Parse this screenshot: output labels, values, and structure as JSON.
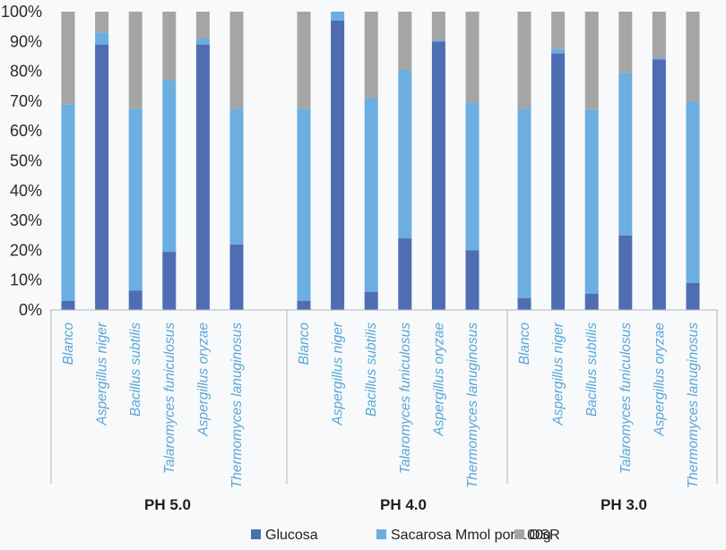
{
  "chart_data": {
    "type": "bar",
    "stacked": true,
    "percent": true,
    "ylim": [
      0,
      100
    ],
    "yticks": [
      "0%",
      "10%",
      "20%",
      "30%",
      "40%",
      "50%",
      "60%",
      "70%",
      "80%",
      "90%",
      "100%"
    ],
    "grid": false,
    "legend_position": "bottom",
    "groups": [
      {
        "label": "PH 5.0",
        "categories": [
          "Blanco",
          "Aspergillus niger",
          "Bacillus subtilis",
          "Talaromyces funiculosus",
          "Aspergillus oryzae",
          "Thermomyces lanuginosus"
        ],
        "series": [
          {
            "name": "Glucosa",
            "values": [
              3,
              89,
              6.5,
              19.5,
              89,
              22
            ]
          },
          {
            "name": "Sacarosa Mmol por 100g",
            "values": [
              66,
              4,
              61,
              57.5,
              2,
              45.5
            ]
          },
          {
            "name": "OSR",
            "values": [
              31,
              7,
              32.5,
              23,
              9,
              32.5
            ]
          }
        ]
      },
      {
        "label": "PH 4.0",
        "categories": [
          "Blanco",
          "Aspergillus niger",
          "Bacillus subtilis",
          "Talaromyces funiculosus",
          "Aspergillus oryzae",
          "Thermomyces lanuginosus"
        ],
        "series": [
          {
            "name": "Glucosa",
            "values": [
              3,
              97,
              6,
              24,
              90,
              20
            ]
          },
          {
            "name": "Sacarosa Mmol por 100g",
            "values": [
              64.5,
              3,
              65,
              56.5,
              0.5,
              49.5
            ]
          },
          {
            "name": "OSR",
            "values": [
              32.5,
              0,
              29,
              19.5,
              9.5,
              30.5
            ]
          }
        ]
      },
      {
        "label": "PH 3.0",
        "categories": [
          "Blanco",
          "Aspergillus niger",
          "Bacillus subtilis",
          "Talaromyces funiculosus",
          "Aspergillus oryzae",
          "Thermomyces lanuginosus"
        ],
        "series": [
          {
            "name": "Glucosa",
            "values": [
              4,
              86,
              5.5,
              25,
              84,
              9
            ]
          },
          {
            "name": "Sacarosa Mmol por 100g",
            "values": [
              63.5,
              1.5,
              61.5,
              54.5,
              0.5,
              61
            ]
          },
          {
            "name": "OSR",
            "values": [
              32.5,
              12.5,
              33,
              20.5,
              15.5,
              30
            ]
          }
        ]
      }
    ],
    "series_names": [
      "Glucosa",
      "Sacarosa Mmol por 100g",
      "OSR"
    ],
    "colors": [
      "#4e6db2",
      "#6baedf",
      "#a5a5a5"
    ]
  }
}
